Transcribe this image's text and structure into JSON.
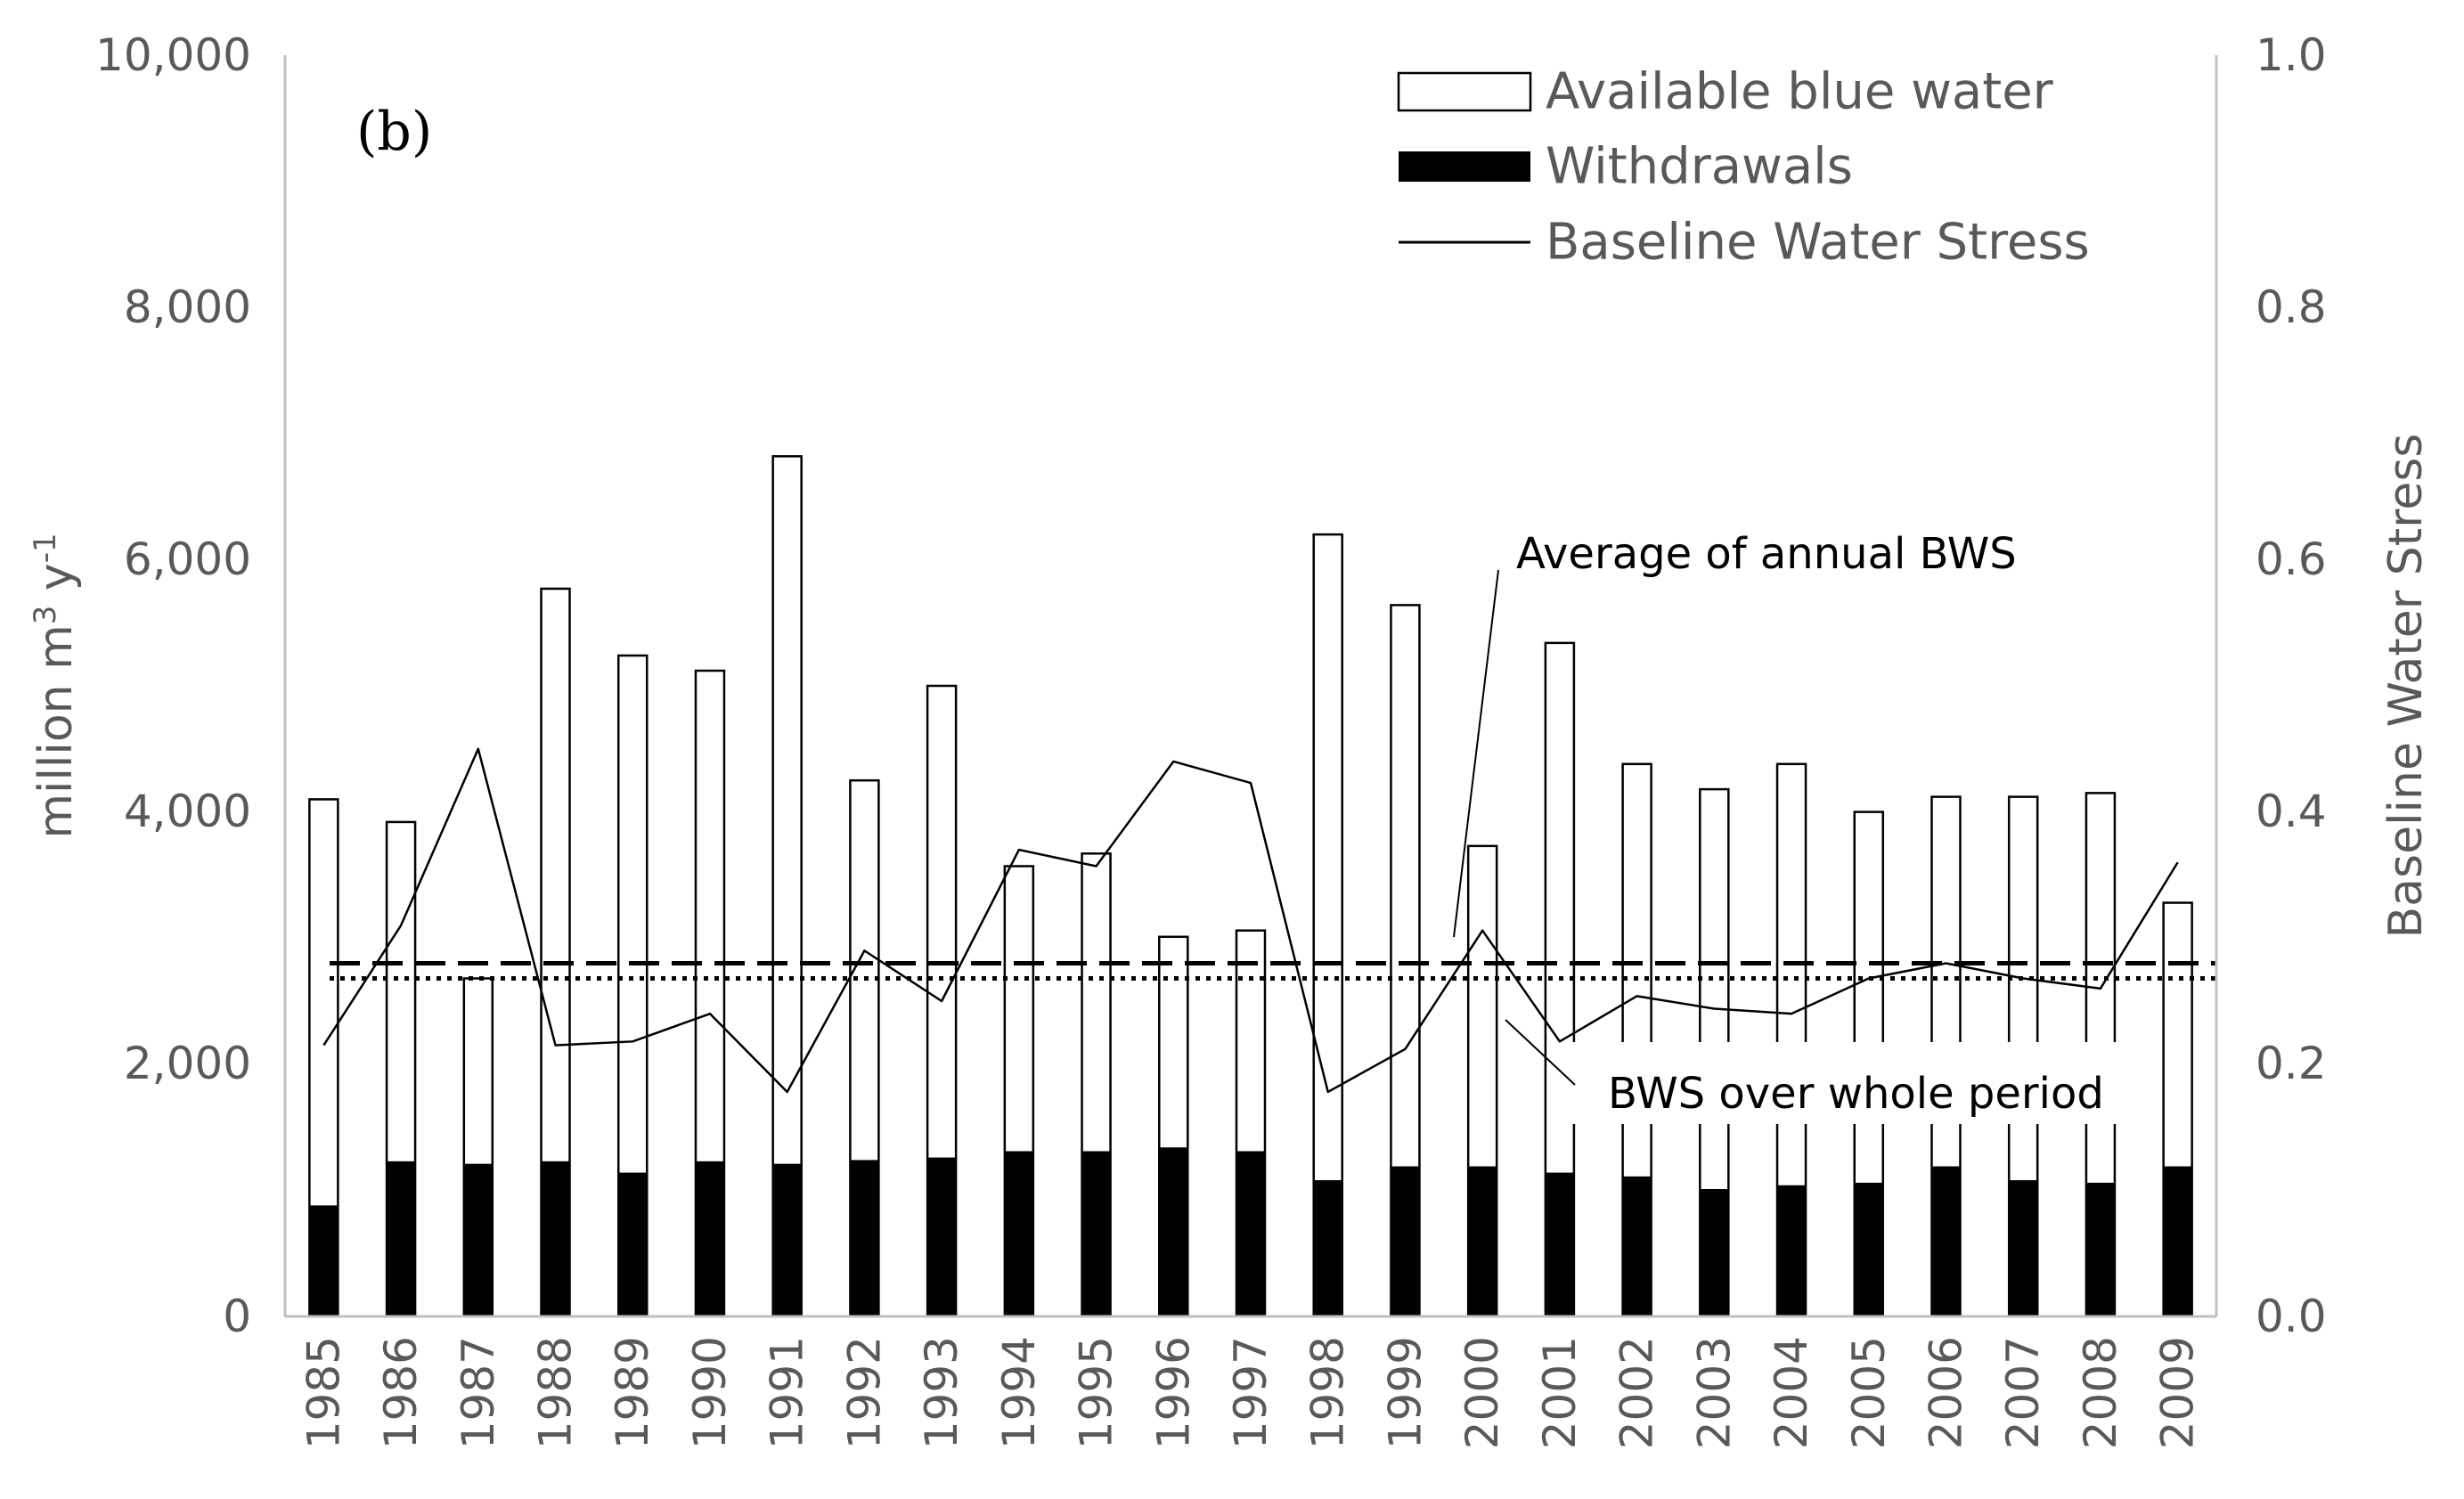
{
  "chart_data": {
    "type": "bar",
    "panel_label": "(b)",
    "categories": [
      "1985",
      "1986",
      "1987",
      "1988",
      "1989",
      "1990",
      "1991",
      "1992",
      "1993",
      "1994",
      "1995",
      "1996",
      "1997",
      "1998",
      "1999",
      "2000",
      "2001",
      "2002",
      "2003",
      "2004",
      "2005",
      "2006",
      "2007",
      "2008",
      "2009"
    ],
    "series": [
      {
        "name": "Available blue water",
        "axis": "left",
        "style": "bar-outline",
        "values": [
          4100,
          3920,
          2680,
          5770,
          5240,
          5120,
          6820,
          4250,
          5000,
          3570,
          3670,
          3010,
          3060,
          6200,
          5640,
          3730,
          5340,
          4380,
          4180,
          4380,
          4000,
          4120,
          4120,
          4150,
          3280
        ]
      },
      {
        "name": "Withdrawals",
        "axis": "left",
        "style": "bar-filled",
        "color": "#000000",
        "values": [
          880,
          1230,
          1210,
          1230,
          1140,
          1230,
          1210,
          1240,
          1260,
          1310,
          1310,
          1340,
          1310,
          1080,
          1190,
          1190,
          1140,
          1110,
          1010,
          1040,
          1060,
          1190,
          1080,
          1060,
          1190
        ]
      },
      {
        "name": "Baseline Water Stress",
        "axis": "right",
        "style": "line",
        "values": [
          0.215,
          0.31,
          0.45,
          0.215,
          0.218,
          0.24,
          0.178,
          0.29,
          0.25,
          0.37,
          0.357,
          0.44,
          0.423,
          0.178,
          0.212,
          0.306,
          0.218,
          0.254,
          0.244,
          0.24,
          0.268,
          0.28,
          0.268,
          0.26,
          0.36
        ]
      }
    ],
    "reference_lines": [
      {
        "name": "Average of annual BWS",
        "axis": "right",
        "value": 0.28,
        "style": "dashed"
      },
      {
        "name": "BWS over whole period",
        "axis": "right",
        "value": 0.268,
        "style": "dotted"
      }
    ],
    "annotations": [
      "Average of annual BWS",
      "BWS over whole period"
    ],
    "y_left": {
      "label_main": "million m",
      "label_sup1": "3",
      "label_mid": " y",
      "label_sup2": "-1",
      "ylim": [
        0,
        10000
      ],
      "ticks": [
        "0",
        "2,000",
        "4,000",
        "6,000",
        "8,000",
        "10,000"
      ]
    },
    "y_right": {
      "label": "Baseline Water Stress",
      "ylim": [
        0,
        1.0
      ],
      "ticks": [
        "0.0",
        "0.2",
        "0.4",
        "0.6",
        "0.8",
        "1.0"
      ]
    },
    "legend_position": "top-right",
    "grid": false
  }
}
